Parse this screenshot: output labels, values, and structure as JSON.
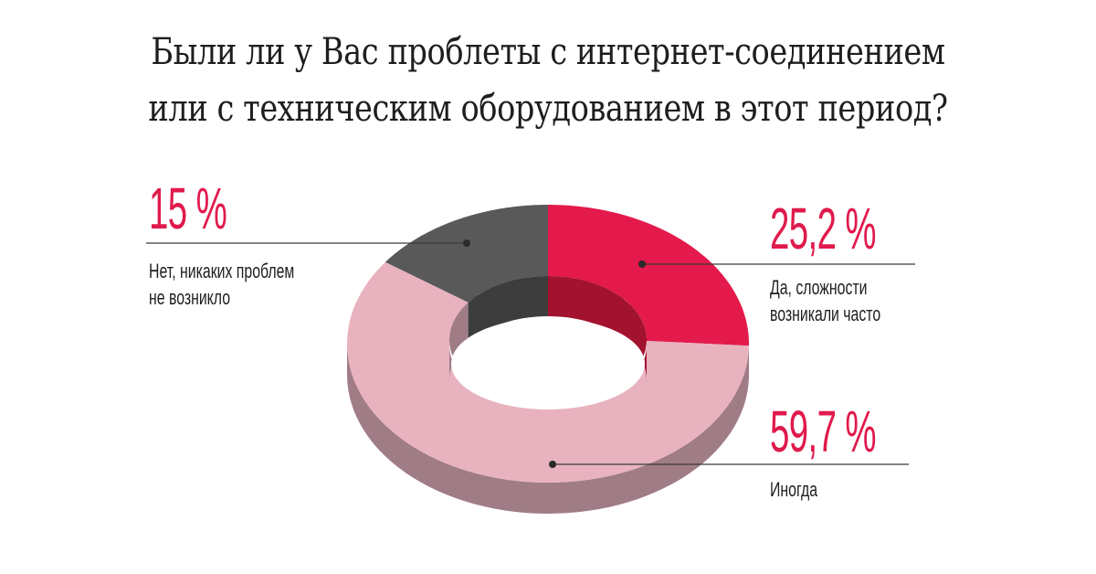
{
  "chart_data": {
    "type": "pie",
    "style": "3d-donut",
    "title": [
      "Были ли у Вас проблеты с интернет-соединением",
      "или с техническим оборудованием в этот период?"
    ],
    "slices": [
      {
        "label": "Да, сложности возникали часто",
        "label_lines": [
          "Да, сложности",
          "возникали часто"
        ],
        "value": 25.2,
        "value_text": "25,2 %",
        "color": "#e31a4b",
        "side_color": "#a3122f"
      },
      {
        "label": "Иногда",
        "label_lines": [
          "Иногда"
        ],
        "value": 59.7,
        "value_text": "59,7 %",
        "color": "#e8b3bf",
        "side_color": "#a07d86"
      },
      {
        "label": "Нет, никаких проблем не возникло",
        "label_lines": [
          "Нет, никаких проблем",
          "не возникло"
        ],
        "value": 15,
        "value_text": "15 %",
        "color": "#595959",
        "side_color": "#3d3d3d"
      }
    ],
    "start": "top",
    "direction": "clockwise"
  },
  "colors": {
    "accent": "#e01a4c",
    "text": "#1e1e1e"
  }
}
